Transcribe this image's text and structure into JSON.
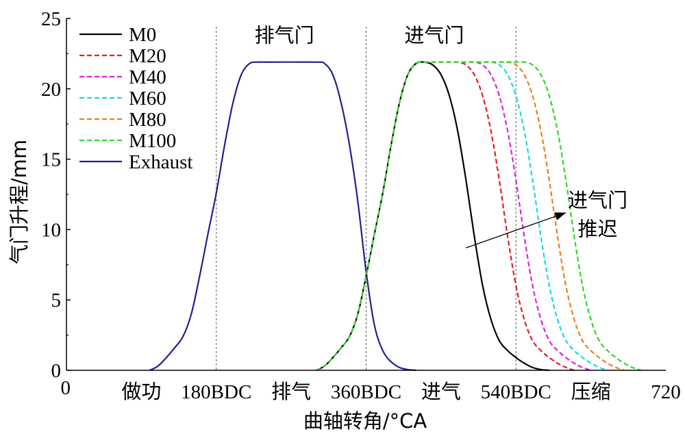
{
  "chart_data": {
    "type": "line",
    "xlabel": "曲轴转角/°CA",
    "ylabel": "气门升程/mm",
    "xlim": [
      0,
      720
    ],
    "ylim": [
      0,
      25
    ],
    "yticks": [
      0,
      5,
      10,
      15,
      20,
      25
    ],
    "x_tick_labels": [
      {
        "x": 0,
        "text": "0"
      },
      {
        "x": 90,
        "text": "做功"
      },
      {
        "x": 180,
        "text": "180BDC"
      },
      {
        "x": 270,
        "text": "排气"
      },
      {
        "x": 360,
        "text": "360BDC"
      },
      {
        "x": 450,
        "text": "进气"
      },
      {
        "x": 540,
        "text": "540BDC"
      },
      {
        "x": 630,
        "text": "压缩"
      },
      {
        "x": 720,
        "text": "720"
      }
    ],
    "vlines": [
      180,
      360,
      540
    ],
    "region_labels": [
      {
        "text": "排气门",
        "x": 270,
        "y": 24.3
      },
      {
        "text": "进气门",
        "x": 450,
        "y": 24.3
      }
    ],
    "annotation": {
      "lines": [
        "进气门",
        "推迟"
      ],
      "x": 625,
      "y": 11.8,
      "arrow_from": [
        480,
        8.7
      ],
      "arrow_to": [
        600,
        11.2
      ]
    },
    "legend_position": "top-left",
    "series": [
      {
        "name": "Exhaust",
        "color": "#1f1f8f",
        "dash": "solid",
        "x": [
          100,
          110,
          120,
          130,
          140,
          150,
          160,
          170,
          180,
          190,
          200,
          210,
          220,
          230,
          240,
          250,
          300,
          310,
          320,
          330,
          340,
          350,
          360,
          370,
          380,
          390,
          400,
          410,
          420
        ],
        "y": [
          0,
          0.3,
          0.9,
          1.6,
          2.4,
          4.0,
          6.7,
          9.7,
          12.6,
          16.0,
          19.0,
          21.0,
          21.8,
          21.9,
          21.9,
          21.9,
          21.9,
          21.8,
          21.0,
          19.0,
          16.0,
          12.0,
          7.0,
          3.2,
          1.4,
          0.6,
          0.2,
          0.05,
          0
        ]
      },
      {
        "name": "M0",
        "color": "#000000",
        "dash": "solid",
        "x": [
          300,
          310,
          320,
          330,
          340,
          350,
          360,
          370,
          380,
          390,
          400,
          410,
          420,
          430,
          440,
          450,
          460,
          470,
          480,
          490,
          500,
          510,
          520,
          530,
          540,
          550,
          560,
          570,
          580
        ],
        "y": [
          0,
          0.3,
          0.9,
          1.6,
          2.4,
          4.0,
          6.7,
          9.7,
          12.6,
          16.0,
          19.0,
          21.0,
          21.8,
          21.9,
          21.7,
          21.0,
          19.5,
          17.0,
          13.5,
          9.5,
          6.0,
          3.6,
          2.1,
          1.4,
          0.9,
          0.5,
          0.2,
          0.05,
          0
        ]
      },
      {
        "name": "M20",
        "color": "#e41a1c",
        "dash": "dashed",
        "x": [
          300,
          310,
          320,
          330,
          340,
          350,
          360,
          370,
          380,
          390,
          400,
          410,
          420,
          430,
          440,
          450,
          460,
          470,
          480,
          490,
          500,
          510,
          520,
          530,
          540,
          550,
          560,
          570,
          580,
          590,
          600,
          610
        ],
        "y": [
          0,
          0.3,
          0.9,
          1.6,
          2.4,
          4.0,
          6.7,
          9.7,
          12.6,
          16.0,
          19.0,
          21.0,
          21.8,
          21.9,
          21.9,
          21.9,
          21.9,
          21.9,
          21.7,
          21.0,
          19.5,
          17.0,
          13.5,
          9.5,
          6.0,
          3.6,
          2.1,
          1.4,
          0.9,
          0.5,
          0.2,
          0
        ]
      },
      {
        "name": "M40",
        "color": "#e020e0",
        "dash": "dashed",
        "x": [
          300,
          310,
          320,
          330,
          340,
          350,
          360,
          370,
          380,
          390,
          400,
          410,
          420,
          430,
          440,
          450,
          460,
          470,
          480,
          490,
          500,
          510,
          520,
          530,
          540,
          550,
          560,
          570,
          580,
          590,
          600,
          610,
          620,
          630
        ],
        "y": [
          0,
          0.3,
          0.9,
          1.6,
          2.4,
          4.0,
          6.7,
          9.7,
          12.6,
          16.0,
          19.0,
          21.0,
          21.8,
          21.9,
          21.9,
          21.9,
          21.9,
          21.9,
          21.9,
          21.9,
          21.7,
          21.0,
          19.5,
          17.0,
          13.5,
          9.5,
          6.0,
          3.6,
          2.1,
          1.4,
          0.9,
          0.5,
          0.2,
          0
        ]
      },
      {
        "name": "M60",
        "color": "#1fd6e0",
        "dash": "dashed",
        "x": [
          300,
          310,
          320,
          330,
          340,
          350,
          360,
          370,
          380,
          390,
          400,
          410,
          420,
          430,
          440,
          450,
          460,
          470,
          480,
          490,
          500,
          510,
          520,
          530,
          540,
          550,
          560,
          570,
          580,
          590,
          600,
          610,
          620,
          630,
          640,
          650
        ],
        "y": [
          0,
          0.3,
          0.9,
          1.6,
          2.4,
          4.0,
          6.7,
          9.7,
          12.6,
          16.0,
          19.0,
          21.0,
          21.8,
          21.9,
          21.9,
          21.9,
          21.9,
          21.9,
          21.9,
          21.9,
          21.9,
          21.9,
          21.7,
          21.0,
          19.5,
          17.0,
          13.5,
          9.5,
          6.0,
          3.6,
          2.1,
          1.4,
          0.9,
          0.5,
          0.2,
          0
        ]
      },
      {
        "name": "M80",
        "color": "#e8801a",
        "dash": "dashed",
        "x": [
          300,
          310,
          320,
          330,
          340,
          350,
          360,
          370,
          380,
          390,
          400,
          410,
          420,
          430,
          440,
          450,
          460,
          470,
          480,
          490,
          500,
          510,
          520,
          530,
          540,
          550,
          560,
          570,
          580,
          590,
          600,
          610,
          620,
          630,
          640,
          650,
          660,
          670
        ],
        "y": [
          0,
          0.3,
          0.9,
          1.6,
          2.4,
          4.0,
          6.7,
          9.7,
          12.6,
          16.0,
          19.0,
          21.0,
          21.8,
          21.9,
          21.9,
          21.9,
          21.9,
          21.9,
          21.9,
          21.9,
          21.9,
          21.9,
          21.9,
          21.9,
          21.7,
          21.0,
          19.5,
          17.0,
          13.5,
          9.5,
          6.0,
          3.6,
          2.1,
          1.4,
          0.9,
          0.5,
          0.2,
          0
        ]
      },
      {
        "name": "M100",
        "color": "#2ed62e",
        "dash": "dashed",
        "x": [
          300,
          310,
          320,
          330,
          340,
          350,
          360,
          370,
          380,
          390,
          400,
          410,
          420,
          430,
          440,
          450,
          460,
          470,
          480,
          490,
          500,
          510,
          520,
          530,
          540,
          550,
          560,
          570,
          580,
          590,
          600,
          610,
          620,
          630,
          640,
          650,
          660,
          670,
          680,
          690
        ],
        "y": [
          0,
          0.3,
          0.9,
          1.6,
          2.4,
          4.0,
          6.7,
          9.7,
          12.6,
          16.0,
          19.0,
          21.0,
          21.8,
          21.9,
          21.9,
          21.9,
          21.9,
          21.9,
          21.9,
          21.9,
          21.9,
          21.9,
          21.9,
          21.9,
          21.9,
          21.9,
          21.7,
          21.0,
          19.5,
          17.0,
          13.5,
          9.5,
          6.0,
          3.6,
          2.1,
          1.4,
          0.9,
          0.5,
          0.2,
          0
        ]
      }
    ],
    "legend_order": [
      "M0",
      "M20",
      "M40",
      "M60",
      "M80",
      "M100",
      "Exhaust"
    ]
  }
}
